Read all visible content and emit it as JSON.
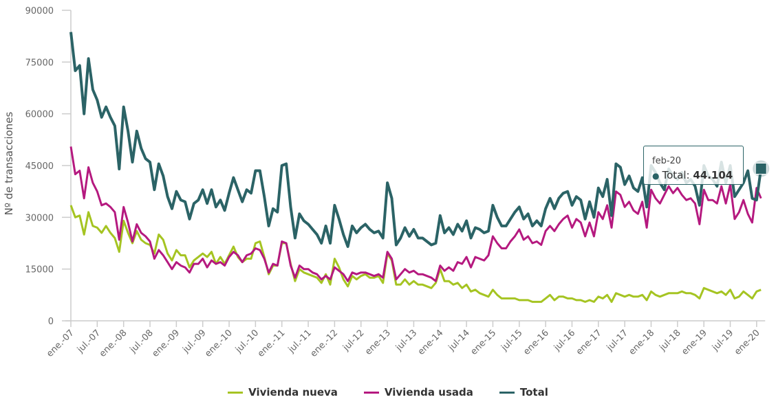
{
  "chart_data": {
    "type": "line",
    "ylabel": "Nº de transacciones",
    "ylim": [
      0,
      90000
    ],
    "yticks": [
      0,
      15000,
      30000,
      45000,
      60000,
      75000,
      90000
    ],
    "x_start": "2007-01",
    "x_end": "2020-02",
    "x_frequency": "monthly",
    "xtick_labels": [
      "ene.-07",
      "jul.-07",
      "ene.-08",
      "jul.-08",
      "ene.-09",
      "jul.-09",
      "ene.-10",
      "jul.-10",
      "ene.-11",
      "jul.-11",
      "ene.-12",
      "jul-12",
      "ene-13",
      "jul-13",
      "ene-14",
      "jul-14",
      "ene-15",
      "jul-15",
      "ene-16",
      "jul-16",
      "ene-17",
      "jul-17",
      "ene-18",
      "jul-18",
      "ene-19",
      "jul-19",
      "ene-20"
    ],
    "grid": false,
    "legend_position": "bottom",
    "series": [
      {
        "name": "Vivienda nueva",
        "color": "#a5c422",
        "values": [
          33500,
          30000,
          30500,
          25000,
          31500,
          27500,
          27000,
          25500,
          27500,
          25500,
          24000,
          20000,
          29000,
          25500,
          22500,
          26000,
          23500,
          22500,
          22000,
          19500,
          25000,
          23500,
          19500,
          17500,
          20500,
          19000,
          19000,
          15500,
          17500,
          18500,
          19500,
          18500,
          20000,
          16500,
          18500,
          16500,
          19000,
          21500,
          18500,
          17000,
          18000,
          18000,
          22500,
          23000,
          18500,
          13500,
          16000,
          16000,
          22500,
          22500,
          16500,
          11500,
          15000,
          14000,
          13500,
          13000,
          12500,
          11000,
          13500,
          10500,
          18000,
          15500,
          12000,
          10000,
          13000,
          12000,
          13000,
          13500,
          12500,
          12500,
          13000,
          11000,
          19500,
          17500,
          10500,
          10500,
          12000,
          10500,
          11500,
          10500,
          10500,
          10000,
          9500,
          11000,
          15000,
          11500,
          11500,
          10500,
          11000,
          9500,
          10500,
          8500,
          9000,
          8000,
          7500,
          7000,
          9000,
          7500,
          6500,
          6500,
          6500,
          6500,
          6000,
          6000,
          6000,
          5500,
          5500,
          5500,
          6500,
          7500,
          6000,
          7000,
          7000,
          6500,
          6500,
          6000,
          6000,
          5500,
          6000,
          5500,
          7000,
          6500,
          7500,
          5500,
          8000,
          7500,
          7000,
          7500,
          7000,
          7000,
          7500,
          6000,
          8500,
          7500,
          7000,
          7500,
          8000,
          8000,
          8000,
          8500,
          8000,
          8000,
          7500,
          6500,
          9500,
          9000,
          8500,
          8000,
          8500,
          7500,
          9000,
          6500,
          7000,
          8500,
          7500,
          6500,
          8500,
          9000
        ]
      },
      {
        "name": "Vivienda usada",
        "color": "#b5197f",
        "values": [
          50500,
          42500,
          43500,
          35500,
          44500,
          40000,
          37500,
          33500,
          34000,
          33000,
          31500,
          23500,
          33000,
          28500,
          23000,
          28000,
          25500,
          24500,
          23000,
          18000,
          20500,
          19000,
          17000,
          15000,
          17000,
          16000,
          15500,
          14000,
          16500,
          16500,
          18000,
          15500,
          17500,
          16500,
          17000,
          16000,
          18500,
          20000,
          19000,
          17000,
          19000,
          19500,
          21000,
          20500,
          18000,
          14000,
          16500,
          16000,
          23000,
          22500,
          16000,
          12500,
          16000,
          15000,
          15000,
          14000,
          13500,
          12000,
          13000,
          12000,
          15500,
          14500,
          13500,
          11500,
          14000,
          13500,
          14000,
          14000,
          13500,
          13000,
          13500,
          12500,
          20000,
          18000,
          12000,
          13500,
          15000,
          14000,
          14500,
          13500,
          13500,
          13000,
          12500,
          11500,
          16000,
          14500,
          15500,
          14500,
          17000,
          16500,
          18500,
          15500,
          18500,
          18000,
          17500,
          19000,
          24500,
          22500,
          21000,
          21000,
          23000,
          24500,
          26500,
          23500,
          24500,
          22500,
          23000,
          22000,
          26000,
          27500,
          26000,
          28000,
          29500,
          30500,
          27000,
          29500,
          28500,
          24500,
          28500,
          24500,
          31500,
          29500,
          33500,
          27000,
          37500,
          36500,
          33000,
          34500,
          32000,
          31000,
          34500,
          27000,
          38000,
          35500,
          34000,
          36500,
          39000,
          37000,
          38500,
          36500,
          35000,
          35500,
          34000,
          28000,
          38000,
          35000,
          35000,
          34000,
          39000,
          34000,
          39500,
          29500,
          31500,
          35000,
          31000,
          28500,
          38500,
          35500
        ]
      },
      {
        "name": "Total",
        "color": "#2b6366",
        "values": [
          83700,
          72500,
          74000,
          60000,
          76000,
          67000,
          64000,
          59000,
          62000,
          59000,
          56500,
          44000,
          62000,
          55000,
          46000,
          55000,
          50000,
          47000,
          46000,
          38000,
          45500,
          42000,
          36000,
          32500,
          37500,
          35000,
          34500,
          29500,
          34000,
          35000,
          38000,
          34000,
          38000,
          33000,
          35000,
          32000,
          37000,
          41500,
          38000,
          34500,
          38000,
          37000,
          43500,
          43500,
          36000,
          27500,
          32500,
          31500,
          45000,
          45500,
          33000,
          24000,
          31000,
          29000,
          28000,
          26500,
          25000,
          22500,
          27500,
          22500,
          33500,
          29500,
          25000,
          21500,
          27500,
          25500,
          27000,
          28000,
          26500,
          25500,
          26000,
          24000,
          40000,
          35500,
          22000,
          24000,
          27000,
          24500,
          26500,
          24000,
          24000,
          23000,
          22000,
          22500,
          30500,
          25500,
          27000,
          25000,
          28000,
          26000,
          29000,
          24000,
          27000,
          26500,
          25500,
          26000,
          33500,
          30000,
          27500,
          27500,
          29500,
          31500,
          33000,
          29500,
          31000,
          27500,
          29000,
          27500,
          32500,
          35500,
          32500,
          35500,
          37000,
          37500,
          33500,
          36000,
          35000,
          29500,
          34500,
          30000,
          38500,
          36000,
          41000,
          30500,
          45500,
          44500,
          39500,
          42000,
          38500,
          37500,
          41500,
          33000,
          45000,
          43000,
          40000,
          38000,
          44000,
          42000,
          41000,
          43000,
          40000,
          41000,
          39000,
          33500,
          45000,
          42000,
          41000,
          39000,
          46000,
          40000,
          45000,
          36000,
          38000,
          40000,
          43500,
          35500,
          35000,
          44104
        ]
      }
    ],
    "tooltip": {
      "date": "feb-20",
      "series": "Total",
      "label": "Total:",
      "value": "44.104"
    }
  }
}
